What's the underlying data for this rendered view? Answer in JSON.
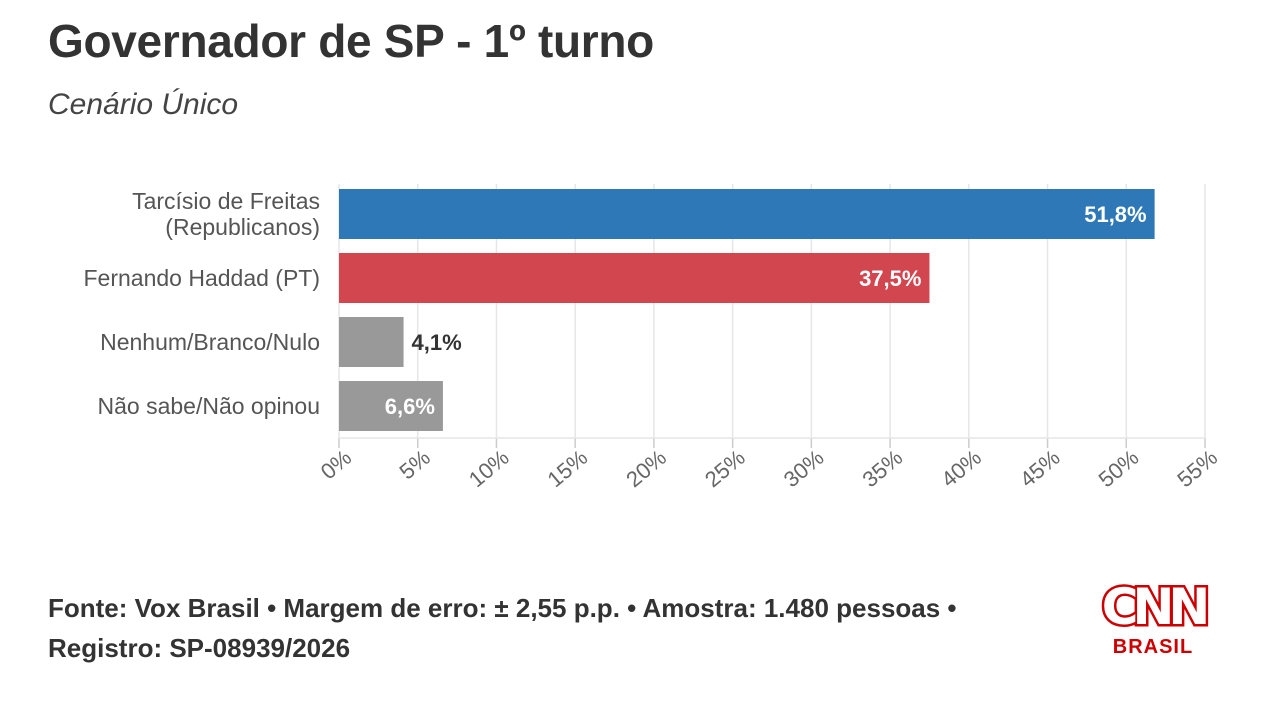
{
  "header": {
    "title": "Governador de SP - 1º turno",
    "subtitle": "Cenário Único"
  },
  "chart_data": {
    "type": "bar",
    "orientation": "horizontal",
    "categories": [
      [
        "Tarcísio de Freitas",
        "(Republicanos)"
      ],
      [
        "Fernando Haddad (PT)"
      ],
      [
        "Nenhum/Branco/Nulo"
      ],
      [
        "Não sabe/Não opinou"
      ]
    ],
    "values": [
      51.8,
      37.5,
      4.1,
      6.6
    ],
    "value_labels": [
      "51,8%",
      "37,5%",
      "4,1%",
      "6,6%"
    ],
    "colors": [
      "#2e78b7",
      "#d2464f",
      "#999999",
      "#999999"
    ],
    "xlim": [
      0,
      55
    ],
    "ticks": [
      0,
      5,
      10,
      15,
      20,
      25,
      30,
      35,
      40,
      45,
      50,
      55
    ],
    "tick_labels": [
      "0%",
      "5%",
      "10%",
      "15%",
      "20%",
      "25%",
      "30%",
      "35%",
      "40%",
      "45%",
      "50%",
      "55%"
    ],
    "grid": true
  },
  "footer": {
    "source": "Fonte: Vox Brasil • Margem de erro: ± 2,55 p.p. • Amostra: 1.480 pessoas • Registro: SP-08939/2026"
  },
  "logo": {
    "brand": "CNN",
    "sub": "BRASIL"
  }
}
